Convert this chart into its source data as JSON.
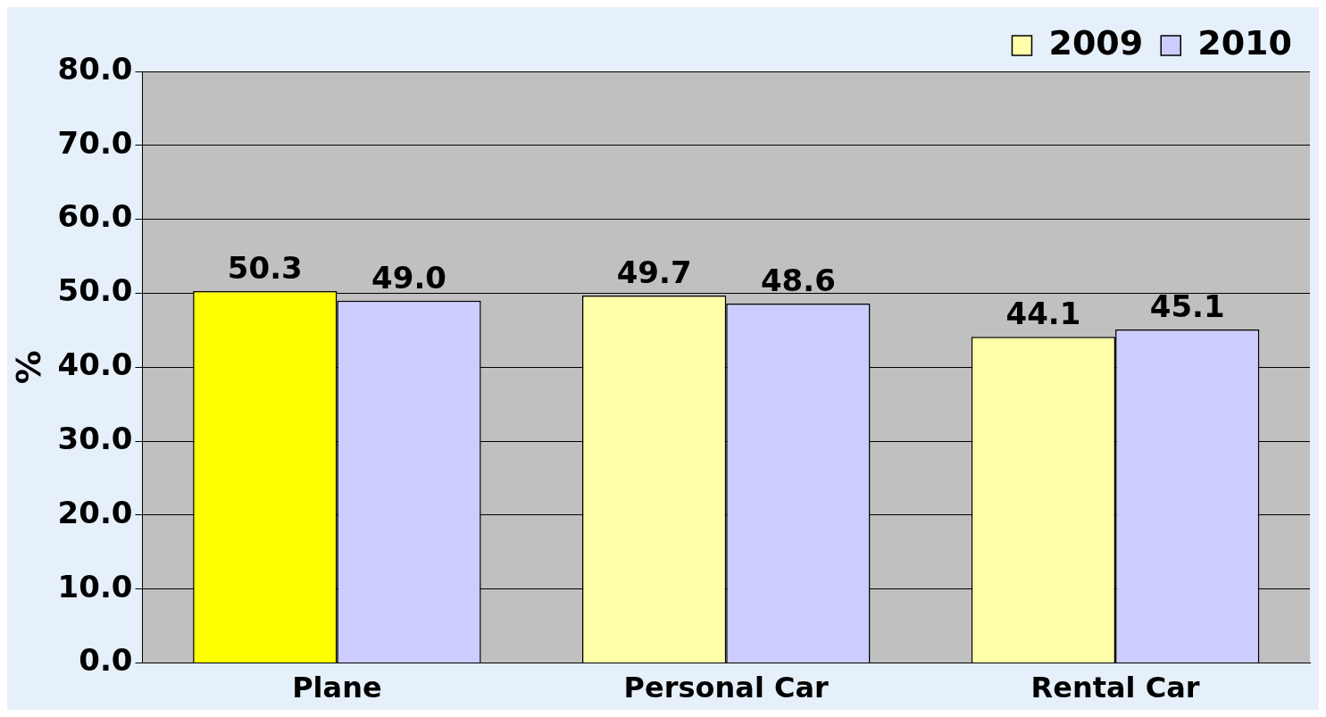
{
  "chart_data": {
    "type": "bar",
    "ylabel": "%",
    "categories": [
      "Plane",
      "Personal Car",
      "Rental Car"
    ],
    "series": [
      {
        "name": "2009",
        "color": "#ffffaa",
        "colors": [
          "#ffff00",
          "#ffffaa",
          "#ffffaa"
        ],
        "values": [
          50.3,
          49.7,
          44.1
        ],
        "value_labels": [
          "50.3",
          "49.7",
          "44.1"
        ]
      },
      {
        "name": "2010",
        "color": "#ccccff",
        "values": [
          49.0,
          48.6,
          45.1
        ],
        "value_labels": [
          "49.0",
          "48.6",
          "45.1"
        ]
      }
    ],
    "ylim": [
      0,
      80
    ],
    "yticks": [
      {
        "value": 0,
        "label": "0.0"
      },
      {
        "value": 10,
        "label": "10.0"
      },
      {
        "value": 20,
        "label": "20.0"
      },
      {
        "value": 30,
        "label": "30.0"
      },
      {
        "value": 40,
        "label": "40.0"
      },
      {
        "value": 50,
        "label": "50.0"
      },
      {
        "value": 60,
        "label": "60.0"
      },
      {
        "value": 70,
        "label": "70.0"
      },
      {
        "value": 80,
        "label": "80.0"
      }
    ],
    "grid": "y",
    "legend": "top right"
  }
}
